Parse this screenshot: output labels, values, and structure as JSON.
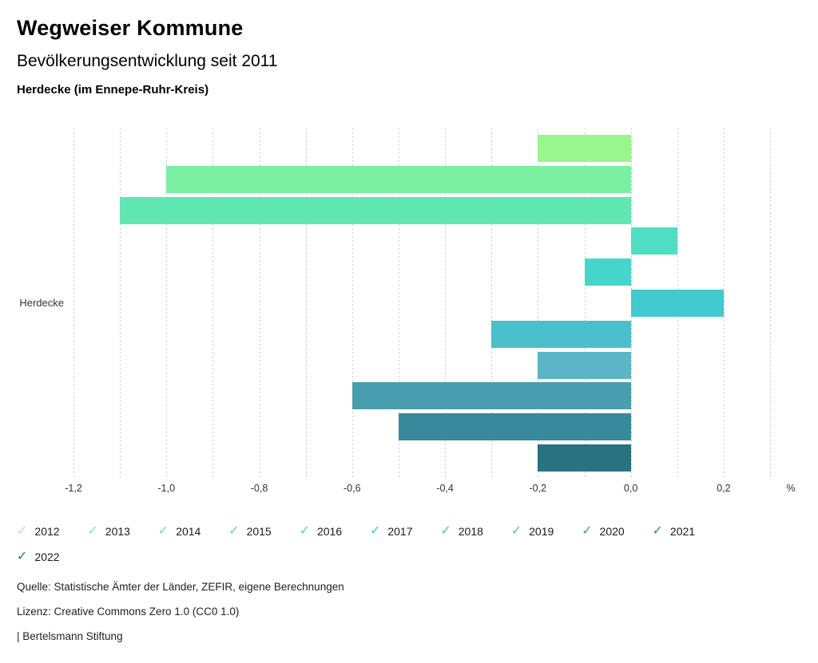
{
  "header": {
    "title": "Wegweiser Kommune",
    "subtitle": "Bevölkerungsentwicklung seit 2011",
    "region": "Herdecke (im Ennepe-Ruhr-Kreis)"
  },
  "chart_data": {
    "type": "bar",
    "orientation": "horizontal",
    "title": "Bevölkerungsentwicklung seit 2011",
    "category_label": "Herdecke",
    "unit": "%",
    "xlim": [
      -1.2,
      0.3
    ],
    "gridline_step": 0.1,
    "grid": true,
    "legend_position": "bottom",
    "x_ticks": [
      {
        "value": -1.2,
        "label": "-1,2"
      },
      {
        "value": -1.0,
        "label": "-1,0"
      },
      {
        "value": -0.8,
        "label": "-0,8"
      },
      {
        "value": -0.6,
        "label": "-0,6"
      },
      {
        "value": -0.4,
        "label": "-0,4"
      },
      {
        "value": -0.2,
        "label": "-0,2"
      },
      {
        "value": 0.0,
        "label": "0,0"
      },
      {
        "value": 0.2,
        "label": "0,2"
      }
    ],
    "series": [
      {
        "name": "2012",
        "value": -0.2,
        "color": "#9BF58E"
      },
      {
        "name": "2013",
        "value": -1.0,
        "color": "#7CEFA3"
      },
      {
        "name": "2014",
        "value": -1.1,
        "color": "#60E7B4"
      },
      {
        "name": "2015",
        "value": 0.1,
        "color": "#4FDEC3"
      },
      {
        "name": "2016",
        "value": -0.1,
        "color": "#45D6CB"
      },
      {
        "name": "2017",
        "value": 0.2,
        "color": "#41CACF"
      },
      {
        "name": "2018",
        "value": -0.3,
        "color": "#4BC0CC"
      },
      {
        "name": "2019",
        "value": -0.2,
        "color": "#5BB5C7"
      },
      {
        "name": "2020",
        "value": -0.6,
        "color": "#489EAF"
      },
      {
        "name": "2021",
        "value": -0.5,
        "color": "#38899A"
      },
      {
        "name": "2022",
        "value": -0.2,
        "color": "#297380"
      }
    ]
  },
  "legend": {
    "check_icon": "✓"
  },
  "footer": {
    "source": "Quelle: Statistische Ämter der Länder, ZEFIR, eigene Berechnungen",
    "license": "Lizenz: Creative Commons Zero 1.0 (CC0 1.0)",
    "attribution": "| Bertelsmann Stiftung"
  }
}
